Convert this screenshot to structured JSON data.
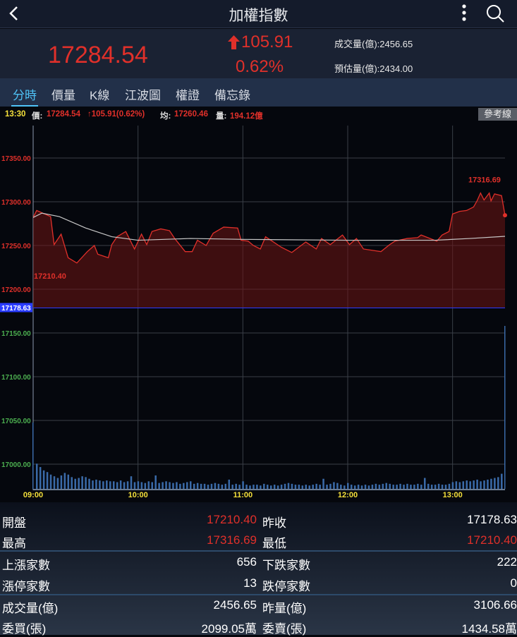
{
  "header": {
    "title": "加權指數",
    "back_icon": "chevron-left-icon",
    "more_icon": "vertical-dots-icon",
    "search_icon": "search-icon"
  },
  "quote": {
    "price": "17284.54",
    "change": "105.91",
    "change_icon": "arrow-up-icon",
    "percent": "0.62%",
    "volume_label": "成交量(億):2456.65",
    "estimate_label": "預估量(億):2434.00"
  },
  "tabs": [
    {
      "label": "分時",
      "active": true
    },
    {
      "label": "價量"
    },
    {
      "label": "K線"
    },
    {
      "label": "江波圖"
    },
    {
      "label": "權證"
    },
    {
      "label": "備忘錄"
    }
  ],
  "info_bar": {
    "time": "13:30",
    "price_label": "價:",
    "price": "17284.54",
    "change": "↑105.91(0.62%)",
    "avg_label": "均:",
    "avg": "17260.46",
    "vol_label": "量:",
    "vol": "194.12億",
    "ref_button": "參考線"
  },
  "colors": {
    "up": "#e0302a",
    "down": "#4caf50",
    "avg_line": "#c8c8c8",
    "ref_line": "#2a3cff",
    "volume": "#3a6aa8",
    "accent": "#4fc3f7",
    "time_label": "#f5e03a"
  },
  "chart_data": {
    "type": "line",
    "x_ticks": [
      "09:00",
      "10:00",
      "11:00",
      "12:00",
      "13:00"
    ],
    "xlim": [
      "09:00",
      "13:30"
    ],
    "y_ticks": [
      "17350.00",
      "17300.00",
      "17250.00",
      "17200.00",
      "17150.00",
      "17100.00",
      "17050.00",
      "17000.00"
    ],
    "reference": {
      "value": 17178.63,
      "label": "17178.63"
    },
    "high_label": "17316.69",
    "low_label": "17210.40",
    "price": [
      [
        "09:00",
        17282
      ],
      [
        "09:02",
        17290
      ],
      [
        "09:10",
        17283
      ],
      [
        "09:12",
        17251
      ],
      [
        "09:16",
        17263
      ],
      [
        "09:20",
        17236
      ],
      [
        "09:25",
        17230
      ],
      [
        "09:31",
        17243
      ],
      [
        "09:35",
        17250
      ],
      [
        "09:37",
        17240
      ],
      [
        "09:43",
        17236
      ],
      [
        "09:45",
        17251
      ],
      [
        "09:48",
        17260
      ],
      [
        "09:53",
        17266
      ],
      [
        "09:58",
        17246
      ],
      [
        "10:02",
        17263
      ],
      [
        "10:05",
        17251
      ],
      [
        "10:08",
        17266
      ],
      [
        "10:13",
        17269
      ],
      [
        "10:18",
        17267
      ],
      [
        "10:21",
        17258
      ],
      [
        "10:27",
        17243
      ],
      [
        "10:31",
        17243
      ],
      [
        "10:34",
        17256
      ],
      [
        "10:39",
        17250
      ],
      [
        "10:43",
        17264
      ],
      [
        "10:49",
        17271
      ],
      [
        "10:57",
        17270
      ],
      [
        "10:59",
        17256
      ],
      [
        "11:03",
        17255
      ],
      [
        "11:06",
        17250
      ],
      [
        "11:10",
        17246
      ],
      [
        "11:13",
        17260
      ],
      [
        "11:22",
        17248
      ],
      [
        "11:28",
        17242
      ],
      [
        "11:36",
        17254
      ],
      [
        "11:42",
        17246
      ],
      [
        "11:45",
        17258
      ],
      [
        "11:50",
        17251
      ],
      [
        "11:57",
        17262
      ],
      [
        "12:01",
        17251
      ],
      [
        "12:05",
        17258
      ],
      [
        "12:09",
        17246
      ],
      [
        "12:19",
        17243
      ],
      [
        "12:24",
        17251
      ],
      [
        "12:27",
        17255
      ],
      [
        "12:34",
        17258
      ],
      [
        "12:40",
        17259
      ],
      [
        "12:42",
        17262
      ],
      [
        "12:51",
        17255
      ],
      [
        "12:54",
        17262
      ],
      [
        "12:58",
        17266
      ],
      [
        "13:00",
        17286
      ],
      [
        "13:04",
        17289
      ],
      [
        "13:08",
        17290
      ],
      [
        "13:12",
        17294
      ],
      [
        "13:14",
        17301
      ],
      [
        "13:16",
        17310
      ],
      [
        "13:18",
        17302
      ],
      [
        "13:21",
        17310
      ],
      [
        "13:22",
        17301
      ],
      [
        "13:24",
        17309
      ],
      [
        "13:28",
        17307
      ],
      [
        "13:30",
        17284.54
      ]
    ],
    "average": [
      [
        "09:00",
        17282
      ],
      [
        "09:05",
        17287
      ],
      [
        "09:15",
        17283
      ],
      [
        "09:30",
        17270
      ],
      [
        "09:45",
        17260
      ],
      [
        "10:00",
        17256
      ],
      [
        "10:30",
        17258
      ],
      [
        "11:00",
        17257
      ],
      [
        "12:00",
        17256
      ],
      [
        "12:50",
        17256
      ],
      [
        "13:10",
        17258
      ],
      [
        "13:30",
        17260.46
      ]
    ],
    "volume_unit": "億",
    "volume": [
      79,
      30,
      26,
      22,
      20,
      17,
      15,
      13,
      16,
      19,
      17,
      14,
      12,
      13,
      15,
      14,
      12,
      10,
      11,
      10,
      9,
      10,
      9,
      9,
      8,
      10,
      8,
      9,
      15,
      8,
      9,
      8,
      7,
      9,
      8,
      16,
      7,
      8,
      9,
      8,
      7,
      8,
      6,
      7,
      8,
      9,
      6,
      7,
      6,
      6,
      5,
      6,
      7,
      6,
      5,
      6,
      11,
      5,
      6,
      5,
      9,
      5,
      4,
      5,
      5,
      4,
      6,
      5,
      4,
      5,
      4,
      5,
      6,
      7,
      6,
      5,
      5,
      4,
      5,
      4,
      5,
      6,
      5,
      12,
      5,
      6,
      8,
      7,
      5,
      4,
      7,
      5,
      4,
      5,
      4,
      5,
      4,
      5,
      6,
      5,
      6,
      7,
      6,
      5,
      5,
      6,
      5,
      6,
      5,
      5,
      6,
      5,
      13,
      6,
      5,
      5,
      6,
      5,
      5,
      6,
      8,
      9,
      8,
      9,
      10,
      9,
      10,
      11,
      9,
      10,
      11,
      12,
      13,
      14,
      18,
      194.12
    ]
  },
  "stats": {
    "rows": [
      {
        "l1": "開盤",
        "v1": "17210.40",
        "l2": "昨收",
        "v2": "17178.63",
        "c1": "red",
        "c2": ""
      },
      {
        "l1": "最高",
        "v1": "17316.69",
        "l2": "最低",
        "v2": "17210.40",
        "c1": "red",
        "c2": "red"
      },
      {
        "l1": "上漲家數",
        "v1": "656",
        "l2": "下跌家數",
        "v2": "222"
      },
      {
        "l1": "漲停家數",
        "v1": "13",
        "l2": "跌停家數",
        "v2": "0"
      },
      {
        "l1": "成交量(億)",
        "v1": "2456.65",
        "l2": "昨量(億)",
        "v2": "3106.66"
      },
      {
        "l1": "委買(張)",
        "v1": "2099.05萬",
        "l2": "委賣(張)",
        "v2": "1434.58萬"
      }
    ]
  }
}
